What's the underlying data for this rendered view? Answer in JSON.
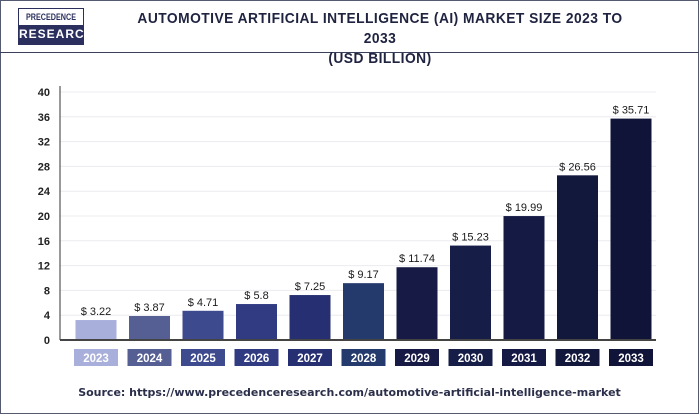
{
  "logo": {
    "line1": "PRECEDENCE",
    "line2": "RESEARCH"
  },
  "chart_data": {
    "type": "bar",
    "title": "AUTOMOTIVE ARTIFICIAL INTELLIGENCE (AI) MARKET SIZE 2023 TO 2033",
    "subtitle": "(USD BILLION)",
    "categories": [
      "2023",
      "2024",
      "2025",
      "2026",
      "2027",
      "2028",
      "2029",
      "2030",
      "2031",
      "2032",
      "2033"
    ],
    "values": [
      3.22,
      3.87,
      4.71,
      5.8,
      7.25,
      9.17,
      11.74,
      15.23,
      19.99,
      26.56,
      35.71
    ],
    "data_labels": [
      "$ 3.22",
      "$ 3.87",
      "$ 4.71",
      "$ 5.8",
      "$ 7.25",
      "$ 9.17",
      "$ 11.74",
      "$ 15.23",
      "$ 19.99",
      "$ 26.56",
      "$ 35.71"
    ],
    "bar_colors": [
      "#a9afdb",
      "#565f93",
      "#3e4a8e",
      "#303b82",
      "#262f72",
      "#243a6c",
      "#161a45",
      "#161d47",
      "#141a44",
      "#12173c",
      "#0f1438"
    ],
    "yticks": [
      0,
      4,
      8,
      12,
      16,
      20,
      24,
      28,
      32,
      36,
      40
    ],
    "ylim": [
      0,
      40
    ],
    "xlabel": "",
    "ylabel": "",
    "grid": true
  },
  "source": "Source: https://www.precedenceresearch.com/automotive-artificial-intelligence-market"
}
